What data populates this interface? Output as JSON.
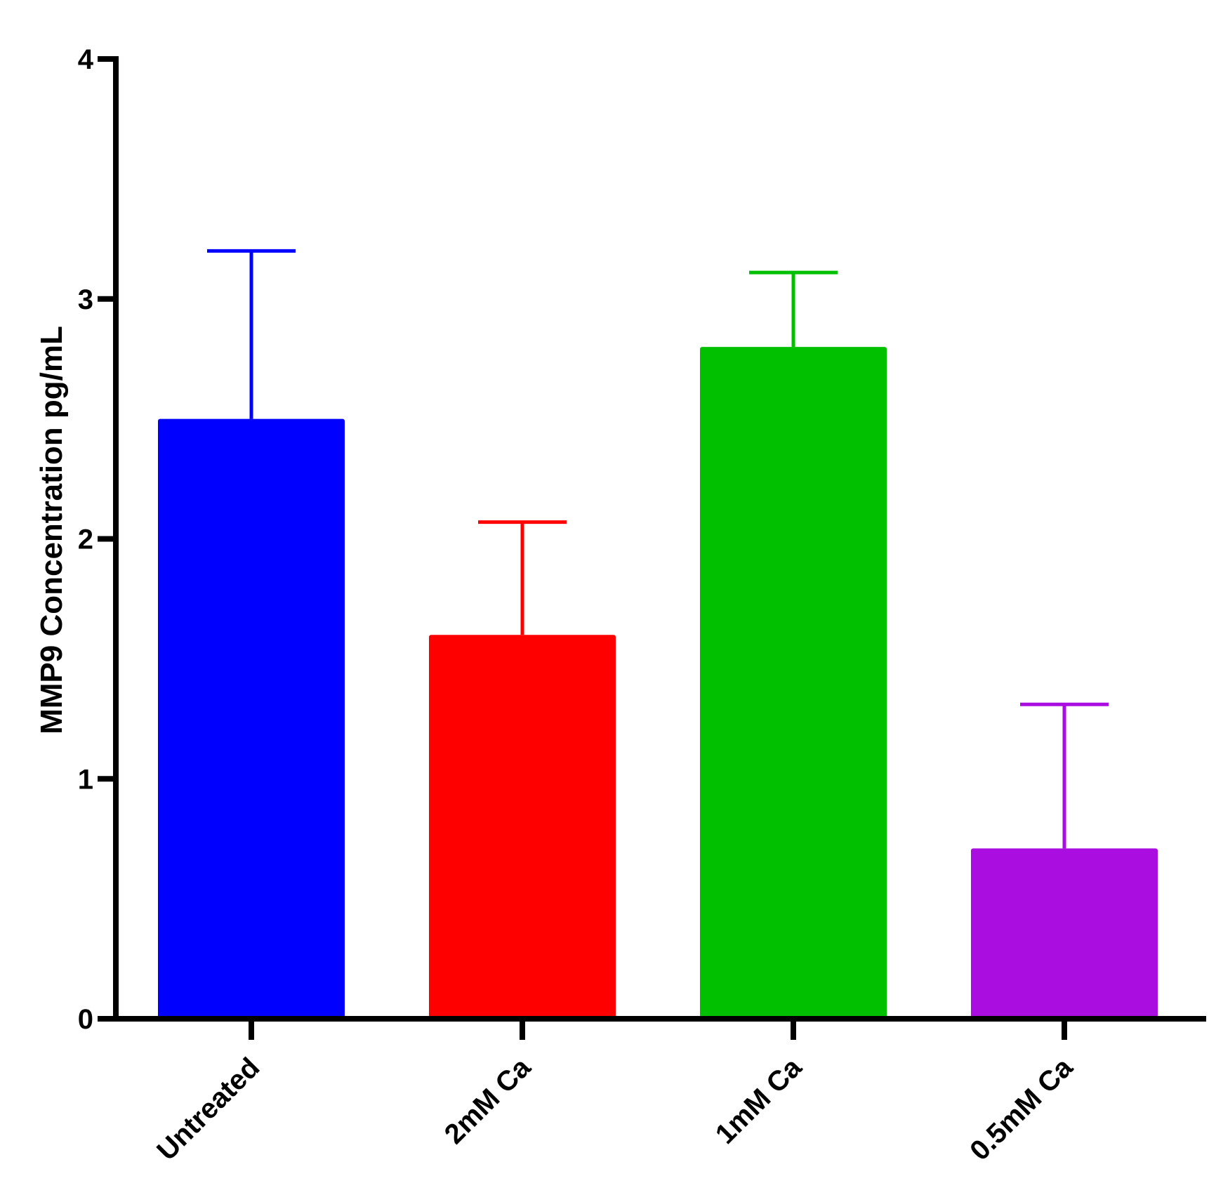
{
  "chart_data": {
    "type": "bar",
    "title": "",
    "xlabel": "",
    "ylabel": "MMP9 Concentration pg/mL",
    "ylim": [
      0,
      4
    ],
    "yticks": [
      "0",
      "1",
      "2",
      "3",
      "4"
    ],
    "categories": [
      "Untreated",
      "2mM Ca",
      "1mM Ca",
      "0.5mM Ca"
    ],
    "values": [
      2.5,
      1.6,
      2.8,
      0.71
    ],
    "error_upper": [
      3.2,
      2.07,
      3.11,
      1.31
    ],
    "colors": [
      "#0000ff",
      "#ff0000",
      "#00c000",
      "#aa0ddf"
    ],
    "grid": false,
    "legend": "none"
  }
}
